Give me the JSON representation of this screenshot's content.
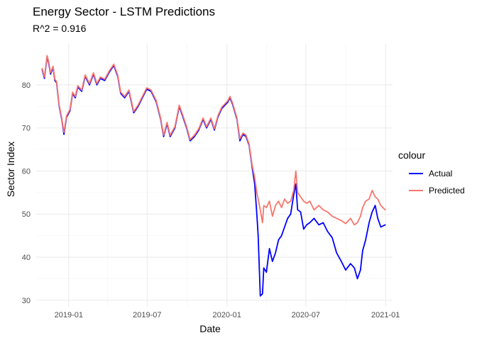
{
  "chart_data": {
    "type": "line",
    "title": "Energy Sector - LSTM Predictions",
    "subtitle": "R^2 = 0.916",
    "xlabel": "Date",
    "ylabel": "Sector Index",
    "x_axis_type": "date",
    "xlim": [
      "2018-10-18",
      "2021-01-17"
    ],
    "ylim": [
      28.5,
      89.5
    ],
    "x_ticks": [
      "2019-01-01",
      "2019-07-01",
      "2020-01-01",
      "2020-07-01",
      "2021-01-01"
    ],
    "x_tick_labels": [
      "2019-01",
      "2019-07",
      "2020-01",
      "2020-07",
      "2021-01"
    ],
    "y_ticks": [
      30,
      40,
      50,
      60,
      70,
      80
    ],
    "y_tick_labels": [
      "30",
      "40",
      "50",
      "60",
      "70",
      "80"
    ],
    "grid": true,
    "legend": {
      "title": "colour",
      "position": "right"
    },
    "series": [
      {
        "name": "Actual",
        "color": "#0000ff",
        "points": [
          [
            "2018-11-01",
            83.5
          ],
          [
            "2018-11-06",
            81.5
          ],
          [
            "2018-11-12",
            86.5
          ],
          [
            "2018-11-16",
            85.0
          ],
          [
            "2018-11-20",
            82.5
          ],
          [
            "2018-11-26",
            84.0
          ],
          [
            "2018-11-30",
            81.0
          ],
          [
            "2018-12-04",
            80.5
          ],
          [
            "2018-12-10",
            75.0
          ],
          [
            "2018-12-16",
            72.0
          ],
          [
            "2018-12-21",
            68.5
          ],
          [
            "2018-12-27",
            72.5
          ],
          [
            "2019-01-04",
            74.0
          ],
          [
            "2019-01-10",
            78.0
          ],
          [
            "2019-01-16",
            77.0
          ],
          [
            "2019-01-22",
            79.5
          ],
          [
            "2019-01-31",
            78.5
          ],
          [
            "2019-02-08",
            82.0
          ],
          [
            "2019-02-18",
            80.0
          ],
          [
            "2019-02-27",
            82.5
          ],
          [
            "2019-03-07",
            80.0
          ],
          [
            "2019-03-15",
            81.5
          ],
          [
            "2019-03-25",
            81.0
          ],
          [
            "2019-04-05",
            83.0
          ],
          [
            "2019-04-15",
            84.5
          ],
          [
            "2019-04-24",
            82.0
          ],
          [
            "2019-05-01",
            78.0
          ],
          [
            "2019-05-10",
            77.0
          ],
          [
            "2019-05-20",
            78.5
          ],
          [
            "2019-05-31",
            73.5
          ],
          [
            "2019-06-10",
            75.0
          ],
          [
            "2019-06-20",
            77.0
          ],
          [
            "2019-06-30",
            79.0
          ],
          [
            "2019-07-10",
            78.5
          ],
          [
            "2019-07-22",
            76.0
          ],
          [
            "2019-08-01",
            72.0
          ],
          [
            "2019-08-08",
            68.0
          ],
          [
            "2019-08-16",
            71.0
          ],
          [
            "2019-08-23",
            68.0
          ],
          [
            "2019-09-03",
            70.0
          ],
          [
            "2019-09-13",
            75.0
          ],
          [
            "2019-09-20",
            73.0
          ],
          [
            "2019-09-30",
            70.0
          ],
          [
            "2019-10-08",
            67.0
          ],
          [
            "2019-10-18",
            68.0
          ],
          [
            "2019-10-28",
            69.5
          ],
          [
            "2019-11-07",
            72.0
          ],
          [
            "2019-11-15",
            70.0
          ],
          [
            "2019-11-25",
            72.0
          ],
          [
            "2019-12-03",
            69.5
          ],
          [
            "2019-12-11",
            72.5
          ],
          [
            "2019-12-20",
            74.5
          ],
          [
            "2020-01-03",
            76.0
          ],
          [
            "2020-01-08",
            77.0
          ],
          [
            "2020-01-14",
            75.5
          ],
          [
            "2020-01-24",
            72.0
          ],
          [
            "2020-01-31",
            67.0
          ],
          [
            "2020-02-07",
            68.5
          ],
          [
            "2020-02-14",
            68.0
          ],
          [
            "2020-02-21",
            66.0
          ],
          [
            "2020-02-28",
            61.0
          ],
          [
            "2020-03-05",
            57.0
          ],
          [
            "2020-03-10",
            50.0
          ],
          [
            "2020-03-13",
            45.0
          ],
          [
            "2020-03-18",
            31.0
          ],
          [
            "2020-03-23",
            31.5
          ],
          [
            "2020-03-26",
            37.5
          ],
          [
            "2020-04-01",
            36.5
          ],
          [
            "2020-04-08",
            42.0
          ],
          [
            "2020-04-15",
            39.0
          ],
          [
            "2020-04-22",
            41.0
          ],
          [
            "2020-04-29",
            44.0
          ],
          [
            "2020-05-06",
            45.0
          ],
          [
            "2020-05-13",
            47.0
          ],
          [
            "2020-05-20",
            49.0
          ],
          [
            "2020-05-27",
            50.0
          ],
          [
            "2020-06-03",
            54.5
          ],
          [
            "2020-06-08",
            57.0
          ],
          [
            "2020-06-12",
            51.0
          ],
          [
            "2020-06-19",
            50.5
          ],
          [
            "2020-06-26",
            46.5
          ],
          [
            "2020-07-03",
            47.5
          ],
          [
            "2020-07-10",
            48.0
          ],
          [
            "2020-07-20",
            49.0
          ],
          [
            "2020-07-31",
            47.5
          ],
          [
            "2020-08-10",
            48.0
          ],
          [
            "2020-08-20",
            46.0
          ],
          [
            "2020-08-31",
            44.5
          ],
          [
            "2020-09-10",
            41.0
          ],
          [
            "2020-09-21",
            39.0
          ],
          [
            "2020-10-01",
            37.0
          ],
          [
            "2020-10-12",
            38.5
          ],
          [
            "2020-10-21",
            37.5
          ],
          [
            "2020-10-28",
            35.0
          ],
          [
            "2020-11-04",
            37.0
          ],
          [
            "2020-11-09",
            41.5
          ],
          [
            "2020-11-16",
            44.0
          ],
          [
            "2020-11-24",
            48.0
          ],
          [
            "2020-12-01",
            50.5
          ],
          [
            "2020-12-08",
            52.0
          ],
          [
            "2020-12-14",
            49.0
          ],
          [
            "2020-12-21",
            47.0
          ],
          [
            "2020-12-31",
            47.5
          ]
        ]
      },
      {
        "name": "Predicted",
        "color": "#f8766d",
        "points": [
          [
            "2018-11-01",
            83.8
          ],
          [
            "2018-11-06",
            81.8
          ],
          [
            "2018-11-12",
            86.8
          ],
          [
            "2018-11-16",
            85.3
          ],
          [
            "2018-11-20",
            82.8
          ],
          [
            "2018-11-26",
            84.3
          ],
          [
            "2018-11-30",
            81.3
          ],
          [
            "2018-12-04",
            80.8
          ],
          [
            "2018-12-10",
            75.3
          ],
          [
            "2018-12-16",
            72.3
          ],
          [
            "2018-12-21",
            69.0
          ],
          [
            "2018-12-27",
            72.8
          ],
          [
            "2019-01-04",
            74.3
          ],
          [
            "2019-01-10",
            78.3
          ],
          [
            "2019-01-16",
            77.3
          ],
          [
            "2019-01-22",
            79.8
          ],
          [
            "2019-01-31",
            78.8
          ],
          [
            "2019-02-08",
            82.3
          ],
          [
            "2019-02-18",
            80.3
          ],
          [
            "2019-02-27",
            82.8
          ],
          [
            "2019-03-07",
            80.3
          ],
          [
            "2019-03-15",
            81.8
          ],
          [
            "2019-03-25",
            81.3
          ],
          [
            "2019-04-05",
            83.3
          ],
          [
            "2019-04-15",
            84.8
          ],
          [
            "2019-04-24",
            82.3
          ],
          [
            "2019-05-01",
            78.3
          ],
          [
            "2019-05-10",
            77.3
          ],
          [
            "2019-05-20",
            78.8
          ],
          [
            "2019-05-31",
            73.8
          ],
          [
            "2019-06-10",
            75.3
          ],
          [
            "2019-06-20",
            77.3
          ],
          [
            "2019-06-30",
            79.3
          ],
          [
            "2019-07-10",
            78.8
          ],
          [
            "2019-07-22",
            76.3
          ],
          [
            "2019-08-01",
            72.3
          ],
          [
            "2019-08-08",
            68.3
          ],
          [
            "2019-08-16",
            71.3
          ],
          [
            "2019-08-23",
            68.3
          ],
          [
            "2019-09-03",
            70.3
          ],
          [
            "2019-09-13",
            75.3
          ],
          [
            "2019-09-20",
            73.3
          ],
          [
            "2019-09-30",
            70.3
          ],
          [
            "2019-10-08",
            67.3
          ],
          [
            "2019-10-18",
            68.3
          ],
          [
            "2019-10-28",
            69.8
          ],
          [
            "2019-11-07",
            72.3
          ],
          [
            "2019-11-15",
            70.3
          ],
          [
            "2019-11-25",
            72.3
          ],
          [
            "2019-12-03",
            69.8
          ],
          [
            "2019-12-11",
            72.8
          ],
          [
            "2019-12-20",
            74.8
          ],
          [
            "2020-01-03",
            76.3
          ],
          [
            "2020-01-08",
            77.3
          ],
          [
            "2020-01-14",
            75.8
          ],
          [
            "2020-01-24",
            72.3
          ],
          [
            "2020-01-31",
            67.5
          ],
          [
            "2020-02-07",
            68.8
          ],
          [
            "2020-02-14",
            68.3
          ],
          [
            "2020-02-21",
            66.3
          ],
          [
            "2020-02-28",
            61.5
          ],
          [
            "2020-03-05",
            58.5
          ],
          [
            "2020-03-10",
            55.0
          ],
          [
            "2020-03-13",
            53.5
          ],
          [
            "2020-03-18",
            51.0
          ],
          [
            "2020-03-23",
            48.0
          ],
          [
            "2020-03-26",
            52.0
          ],
          [
            "2020-04-01",
            51.5
          ],
          [
            "2020-04-08",
            53.0
          ],
          [
            "2020-04-15",
            49.5
          ],
          [
            "2020-04-22",
            52.0
          ],
          [
            "2020-04-29",
            53.0
          ],
          [
            "2020-05-06",
            51.5
          ],
          [
            "2020-05-13",
            53.5
          ],
          [
            "2020-05-20",
            52.5
          ],
          [
            "2020-05-27",
            53.0
          ],
          [
            "2020-06-03",
            55.5
          ],
          [
            "2020-06-08",
            60.0
          ],
          [
            "2020-06-12",
            55.0
          ],
          [
            "2020-06-19",
            54.0
          ],
          [
            "2020-06-26",
            53.0
          ],
          [
            "2020-07-03",
            52.5
          ],
          [
            "2020-07-10",
            53.0
          ],
          [
            "2020-07-20",
            51.0
          ],
          [
            "2020-07-31",
            52.0
          ],
          [
            "2020-08-10",
            51.0
          ],
          [
            "2020-08-20",
            50.5
          ],
          [
            "2020-08-31",
            49.5
          ],
          [
            "2020-09-10",
            49.0
          ],
          [
            "2020-09-21",
            48.5
          ],
          [
            "2020-10-01",
            47.8
          ],
          [
            "2020-10-12",
            49.0
          ],
          [
            "2020-10-21",
            47.5
          ],
          [
            "2020-10-28",
            48.0
          ],
          [
            "2020-11-04",
            49.5
          ],
          [
            "2020-11-09",
            51.5
          ],
          [
            "2020-11-16",
            53.0
          ],
          [
            "2020-11-24",
            53.5
          ],
          [
            "2020-12-01",
            55.5
          ],
          [
            "2020-12-08",
            54.0
          ],
          [
            "2020-12-14",
            53.5
          ],
          [
            "2020-12-21",
            52.0
          ],
          [
            "2020-12-31",
            51.0
          ]
        ]
      }
    ]
  }
}
